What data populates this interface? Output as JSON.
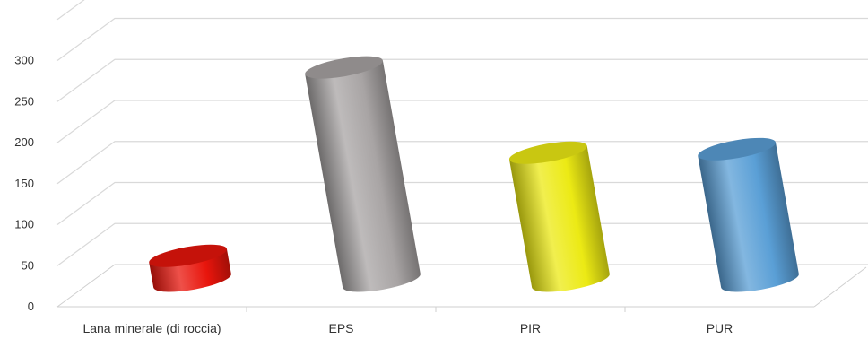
{
  "chart_data": {
    "type": "bar",
    "style": "3d-cylinder",
    "categories": [
      "Lana minerale (di roccia)",
      "EPS",
      "PIR",
      "PUR"
    ],
    "values": [
      35,
      300,
      180,
      185
    ],
    "colors": [
      "#e8150c",
      "#a8a4a4",
      "#ecea14",
      "#5a9fd6"
    ],
    "yticks": [
      0,
      50,
      100,
      150,
      200,
      250,
      300
    ],
    "ylim": [
      0,
      350
    ],
    "grid": true,
    "legend": "none",
    "title": "",
    "xlabel": "",
    "ylabel": ""
  }
}
